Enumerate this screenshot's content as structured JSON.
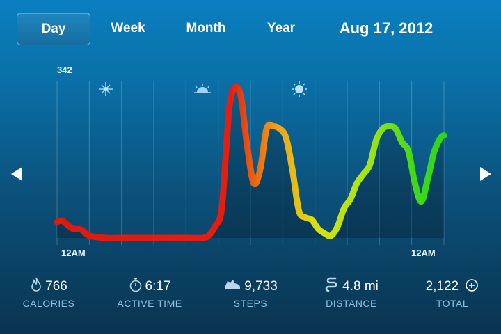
{
  "tabs": [
    {
      "label": "Day",
      "active": true
    },
    {
      "label": "Week",
      "active": false
    },
    {
      "label": "Month",
      "active": false
    },
    {
      "label": "Year",
      "active": false
    }
  ],
  "date": "Aug 17, 2012",
  "chart_data": {
    "type": "line",
    "peak_label": "342",
    "x_start_label": "12AM",
    "x_end_label": "12AM",
    "x_range": [
      0,
      24
    ],
    "ylim": [
      0,
      342
    ],
    "x": [
      0,
      0.3,
      0.6,
      1,
      1.5,
      2,
      3,
      4,
      5,
      6,
      7,
      8,
      9,
      9.4,
      9.8,
      10.2,
      10.5,
      10.7,
      11,
      11.4,
      11.8,
      12.2,
      12.6,
      13,
      13.4,
      13.8,
      14.2,
      14.6,
      15,
      15.4,
      15.8,
      16.2,
      16.6,
      17,
      17.4,
      17.8,
      18.2,
      18.6,
      19,
      19.4,
      19.8,
      20.2,
      20.6,
      21,
      21.4,
      21.8,
      22.2,
      22.6,
      23,
      23.4,
      23.8,
      24
    ],
    "values": [
      35,
      38,
      30,
      20,
      18,
      5,
      0,
      0,
      0,
      0,
      0,
      0,
      0,
      5,
      25,
      60,
      200,
      290,
      330,
      310,
      200,
      120,
      150,
      240,
      245,
      240,
      220,
      150,
      60,
      45,
      40,
      20,
      10,
      5,
      25,
      65,
      85,
      120,
      140,
      160,
      215,
      240,
      245,
      240,
      210,
      190,
      120,
      80,
      130,
      190,
      220,
      225
    ],
    "time_of_day_icons": [
      "night-icon",
      "sunrise-icon",
      "sun-icon",
      "moon-icon"
    ]
  },
  "nav": {
    "prev": "chevron-left-icon",
    "next": "chevron-right-icon"
  },
  "stats": [
    {
      "icon": "flame-icon",
      "value": "766",
      "label": "CALORIES"
    },
    {
      "icon": "stopwatch-icon",
      "value": "6:17",
      "label": "ACTIVE TIME"
    },
    {
      "icon": "shoe-icon",
      "value": "9,733",
      "label": "STEPS"
    },
    {
      "icon": "path-icon",
      "value": "4.8 mi",
      "label": "DISTANCE"
    },
    {
      "icon": "plus-circle-icon",
      "value": "2,122",
      "label": "TOTAL"
    }
  ]
}
